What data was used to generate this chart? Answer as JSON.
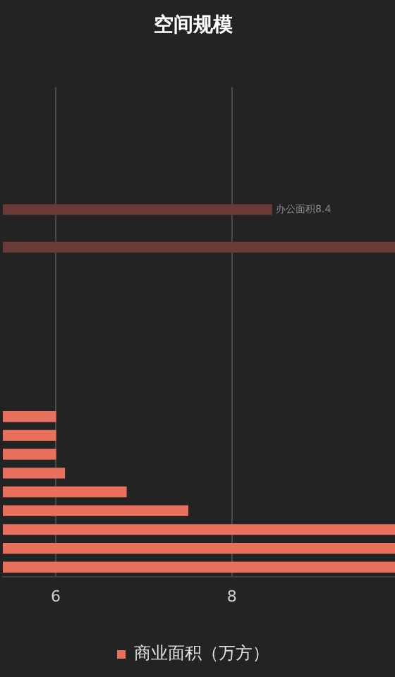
{
  "chart_data": {
    "type": "bar",
    "orientation": "horizontal",
    "title": "空间规模",
    "categories": [
      null,
      null,
      null,
      null,
      null,
      null,
      null,
      null,
      null,
      null,
      null,
      null,
      null,
      null,
      null,
      null,
      null,
      null,
      null,
      null,
      null,
      null,
      null,
      null,
      null,
      null
    ],
    "series": [
      {
        "name": "商业面积（万方）",
        "color": "#e8705c",
        "colors": [
          "#e8705c",
          "#e8705c",
          "#e8705c",
          "#e8705c",
          "#e8705c",
          "#e8705c",
          "#6a3b36",
          "#e8705c",
          "#6a3b36",
          "#e8705c",
          "#e8705c",
          "#e8705c",
          "#e8705c",
          "#e8705c",
          "#e8705c",
          "#e8705c",
          "#e8705c",
          "#e8705c",
          "#e8705c",
          "#e8705c",
          "#e8705c",
          "#e8705c",
          "#e8705c",
          "#e8705c",
          "#e8705c",
          "#e8705c"
        ],
        "values": [
          null,
          null,
          null,
          null,
          null,
          null,
          8.45,
          null,
          9.85,
          null,
          null,
          null,
          null,
          null,
          null,
          null,
          null,
          6.0,
          6.0,
          6.0,
          6.1,
          6.8,
          7.5,
          9.85,
          9.85,
          9.85
        ]
      }
    ],
    "annotations": [
      {
        "text": "办公面积8.4",
        "x": 8.45
      }
    ],
    "xlim": [
      5.4,
      9.85
    ],
    "xticks": [
      6,
      8
    ],
    "grid": "x",
    "legend": "bottom"
  }
}
